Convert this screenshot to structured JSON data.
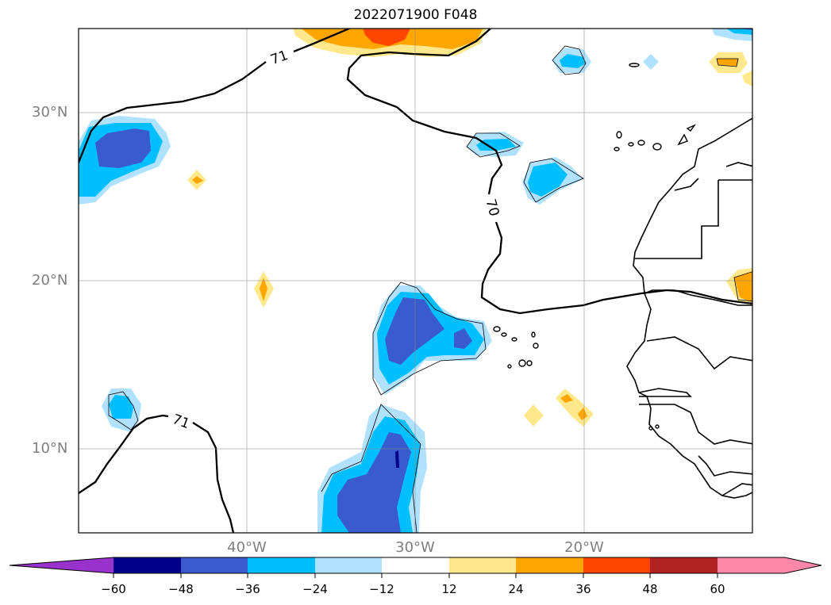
{
  "title": "2022071900 F048",
  "map": {
    "latitude_labels": [
      "30°N",
      "20°N",
      "10°N"
    ],
    "longitude_labels": [
      "40°W",
      "30°W",
      "20°W"
    ],
    "contour_labels": [
      "71",
      "70",
      "71"
    ]
  },
  "colorbar": {
    "tick_labels": [
      "−60",
      "−48",
      "−36",
      "−24",
      "−12",
      "12",
      "24",
      "36",
      "48",
      "60"
    ],
    "colors": [
      "#9932cc",
      "#00008b",
      "#3a5bcd",
      "#00bfff",
      "#b0e2ff",
      "#ffffff",
      "#ffe88c",
      "#ffa500",
      "#ff4500",
      "#b22222",
      "#ff88aa"
    ]
  }
}
